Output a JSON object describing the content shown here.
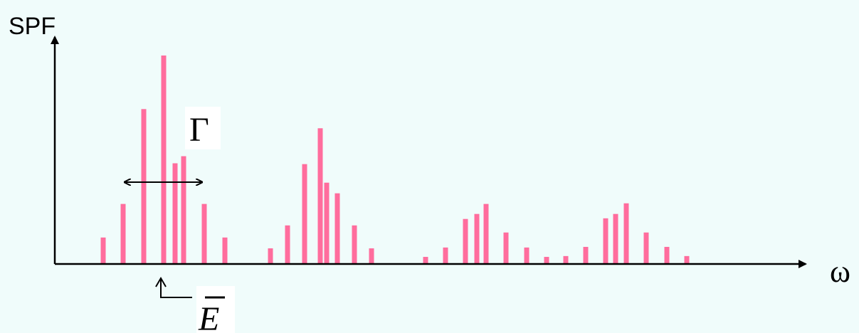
{
  "chart_data": {
    "type": "bar",
    "ylabel": "SPF",
    "xlabel": "ω",
    "annotations": {
      "width_label": "Γ",
      "center_label": "E",
      "center_label_has_bar": true
    },
    "x_ticks_shown": false,
    "y_ticks_shown": false,
    "grid": false,
    "bar_color": "#ff6d9d",
    "baseline": 0,
    "ylim": [
      0,
      100
    ],
    "bars": [
      {
        "x": 145,
        "value": 12.7
      },
      {
        "x": 173,
        "value": 28.8
      },
      {
        "x": 202,
        "value": 74.3
      },
      {
        "x": 230,
        "value": 100
      },
      {
        "x": 246,
        "value": 48.3
      },
      {
        "x": 258,
        "value": 51.7
      },
      {
        "x": 287,
        "value": 28.8
      },
      {
        "x": 316,
        "value": 12.7
      },
      {
        "x": 380,
        "value": 7.5
      },
      {
        "x": 404,
        "value": 18.5
      },
      {
        "x": 428,
        "value": 47.9
      },
      {
        "x": 450,
        "value": 65.1
      },
      {
        "x": 459,
        "value": 39.0
      },
      {
        "x": 474,
        "value": 33.9
      },
      {
        "x": 498,
        "value": 18.5
      },
      {
        "x": 522,
        "value": 7.5
      },
      {
        "x": 598,
        "value": 3.4
      },
      {
        "x": 626,
        "value": 7.9
      },
      {
        "x": 654,
        "value": 21.6
      },
      {
        "x": 670,
        "value": 24.0
      },
      {
        "x": 683,
        "value": 28.8
      },
      {
        "x": 711,
        "value": 15.1
      },
      {
        "x": 740,
        "value": 7.9
      },
      {
        "x": 768,
        "value": 3.4
      },
      {
        "x": 795,
        "value": 3.8
      },
      {
        "x": 823,
        "value": 8.2
      },
      {
        "x": 851,
        "value": 21.9
      },
      {
        "x": 865,
        "value": 24.0
      },
      {
        "x": 880,
        "value": 29.1
      },
      {
        "x": 908,
        "value": 15.1
      },
      {
        "x": 937,
        "value": 8.2
      },
      {
        "x": 965,
        "value": 3.8
      }
    ]
  }
}
